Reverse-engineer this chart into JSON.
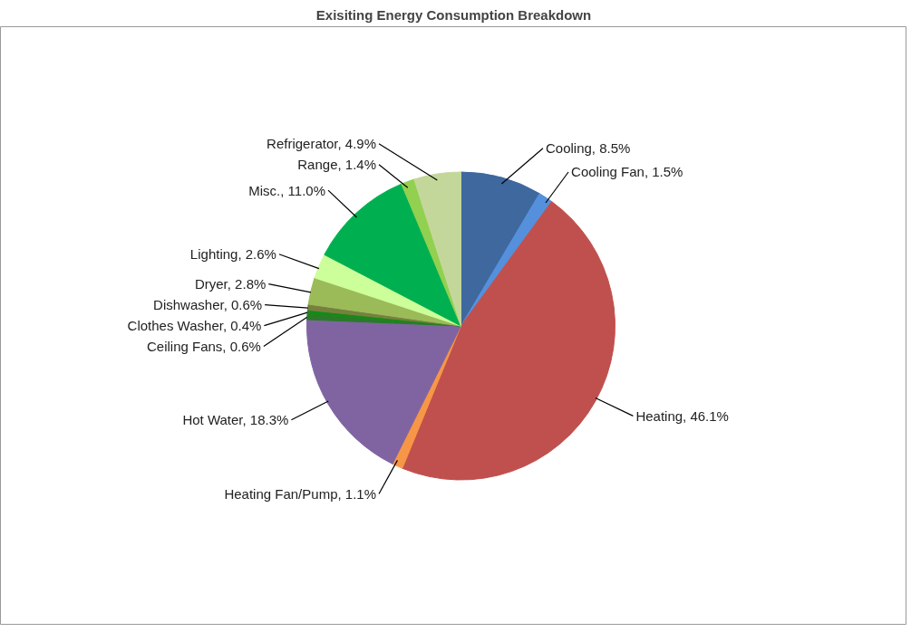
{
  "chart_data": {
    "type": "pie",
    "title": "Exisiting Energy Consumption Breakdown",
    "categories": [
      "Cooling",
      "Cooling Fan",
      "Heating",
      "Heating Fan/Pump",
      "Hot Water",
      "Ceiling Fans",
      "Clothes Washer",
      "Dishwasher",
      "Dryer",
      "Lighting",
      "Misc.",
      "Range",
      "Refrigerator"
    ],
    "values": [
      8.5,
      1.5,
      46.1,
      1.1,
      18.3,
      0.6,
      0.4,
      0.6,
      2.8,
      2.6,
      11.0,
      1.4,
      4.9
    ],
    "value_labels": [
      "8.5%",
      "1.5%",
      "46.1%",
      "1.1%",
      "18.3%",
      "0.6%",
      "0.4%",
      "0.6%",
      "2.8%",
      "2.6%",
      "11.0%",
      "1.4%",
      "4.9%"
    ],
    "colors": [
      "#3e689e",
      "#5490dc",
      "#c0504d",
      "#f79646",
      "#8064a2",
      "#2a7a2a",
      "#168a16",
      "#77803f",
      "#9bbb59",
      "#ccff99",
      "#00b050",
      "#92d050",
      "#c4d79b"
    ]
  }
}
